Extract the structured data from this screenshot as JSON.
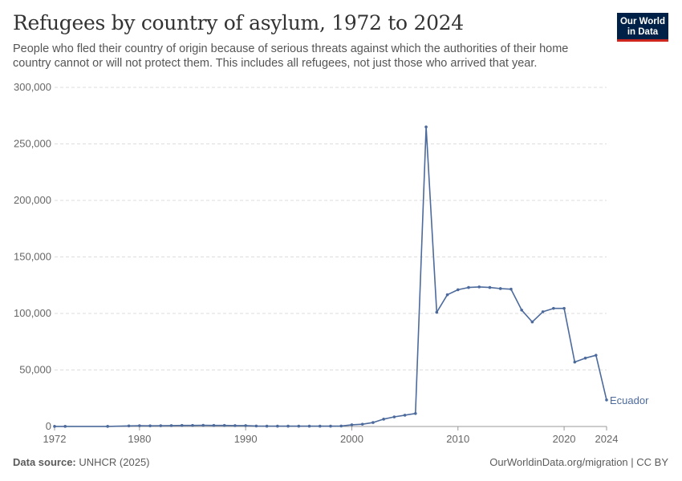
{
  "header": {
    "title": "Refugees by country of asylum, 1972 to 2024",
    "subtitle": "People who fled their country of origin because of serious threats against which the authorities of their home country cannot or will not protect them. This includes all refugees, not just those who arrived that year.",
    "logo_line1": "Our World",
    "logo_line2": "in Data"
  },
  "footer": {
    "source_label": "Data source:",
    "source_value": "UNHCR (2025)",
    "credit": "OurWorldinData.org/migration | CC BY"
  },
  "colors": {
    "series": "#4c6a9c",
    "grid": "#dddddd",
    "axis_text": "#666666",
    "logo_bg": "#002147",
    "logo_accent": "#ce261e"
  },
  "chart_data": {
    "type": "line",
    "ylim": [
      0,
      300000
    ],
    "xlim": [
      1972,
      2024
    ],
    "y_ticks": [
      0,
      50000,
      100000,
      150000,
      200000,
      250000,
      300000
    ],
    "y_tick_labels": [
      "0",
      "50,000",
      "100,000",
      "150,000",
      "200,000",
      "250,000",
      "300,000"
    ],
    "x_ticks": [
      1972,
      1980,
      1990,
      2000,
      2010,
      2020,
      2024
    ],
    "x_tick_labels": [
      "1972",
      "1980",
      "1990",
      "2000",
      "2010",
      "2020",
      "2024"
    ],
    "grid": true,
    "series": [
      {
        "name": "Ecuador",
        "x": [
          1972,
          1973,
          1977,
          1979,
          1980,
          1981,
          1982,
          1983,
          1984,
          1985,
          1986,
          1987,
          1988,
          1989,
          1990,
          1991,
          1992,
          1993,
          1994,
          1995,
          1996,
          1997,
          1998,
          1999,
          2000,
          2001,
          2002,
          2003,
          2004,
          2005,
          2006,
          2007,
          2008,
          2009,
          2010,
          2011,
          2012,
          2013,
          2014,
          2015,
          2016,
          2017,
          2018,
          2019,
          2020,
          2021,
          2022,
          2023,
          2024
        ],
        "values": [
          100,
          100,
          100,
          500,
          700,
          600,
          700,
          800,
          900,
          900,
          1000,
          900,
          900,
          800,
          800,
          400,
          300,
          300,
          300,
          300,
          300,
          300,
          300,
          400,
          1500,
          2000,
          3500,
          6500,
          8500,
          10000,
          11500,
          265000,
          101000,
          116500,
          121000,
          123000,
          123500,
          123000,
          122000,
          121500,
          103000,
          92500,
          101500,
          104500,
          104500,
          57000,
          60500,
          63000,
          23500
        ]
      }
    ]
  }
}
